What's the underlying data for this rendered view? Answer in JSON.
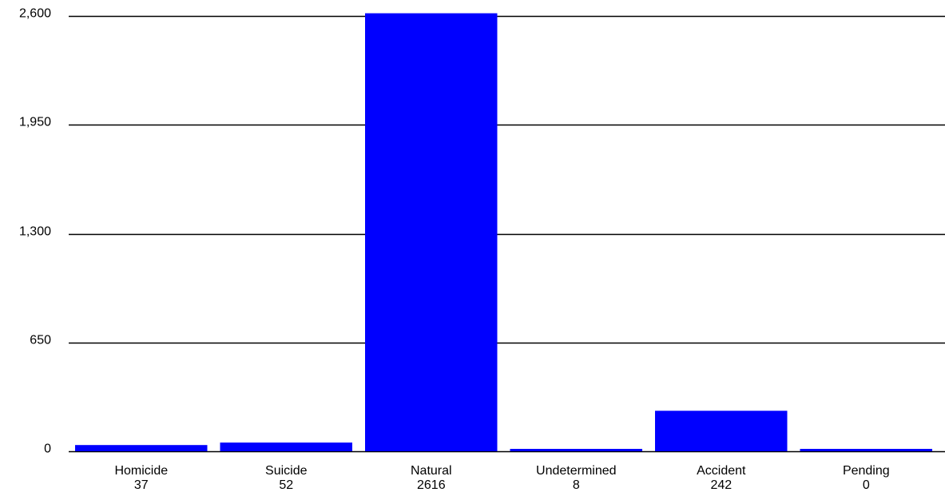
{
  "chart_data": {
    "type": "bar",
    "title": "",
    "xlabel": "",
    "ylabel": "",
    "ylim": [
      0,
      2600
    ],
    "yticks": [
      0,
      650,
      1300,
      1950,
      2600
    ],
    "ytick_labels": [
      "0",
      "650",
      "1,300",
      "1,950",
      "2,600"
    ],
    "categories": [
      "Homicide",
      "Suicide",
      "Natural",
      "Undetermined",
      "Accident",
      "Pending"
    ],
    "values": [
      37,
      52,
      2616,
      8,
      242,
      0
    ],
    "value_labels": [
      "37",
      "52",
      "2616",
      "8",
      "242",
      "0"
    ],
    "bar_color": "#0000ff",
    "grid": true,
    "legend": false
  }
}
